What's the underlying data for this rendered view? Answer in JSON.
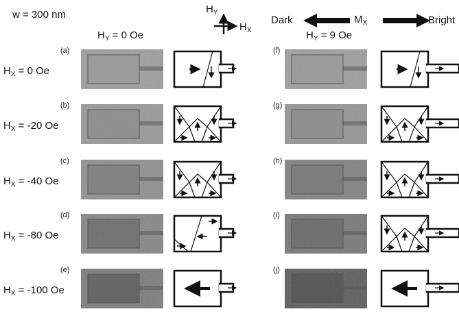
{
  "header": {
    "width_label": "w = 300 nm",
    "field_axes": {
      "y": {
        "main": "H",
        "sub": "Y"
      },
      "x": {
        "main": "H",
        "sub": "X"
      }
    },
    "contrast": {
      "dark": "Dark",
      "mx": {
        "main": "M",
        "sub": "X"
      },
      "bright": "Bright"
    }
  },
  "columns": [
    {
      "main": "H",
      "sub": "Y",
      "rest": " = 0 Oe"
    },
    {
      "main": "H",
      "sub": "Y",
      "rest": " = 9 Oe"
    }
  ],
  "rows": [
    {
      "field": {
        "main": "H",
        "sub": "X",
        "rest": " = 0 Oe"
      },
      "left_label": "(a)",
      "right_label": "(f)"
    },
    {
      "field": {
        "main": "H",
        "sub": "X",
        "rest": " = -20 Oe"
      },
      "left_label": "(b)",
      "right_label": "(g)"
    },
    {
      "field": {
        "main": "H",
        "sub": "X",
        "rest": " = -40 Oe"
      },
      "left_label": "(c)",
      "right_label": "(h)"
    },
    {
      "field": {
        "main": "H",
        "sub": "X",
        "rest": " = -80 Oe"
      },
      "left_label": "(d)",
      "right_label": "(i)"
    },
    {
      "field": {
        "main": "H",
        "sub": "X",
        "rest": " = -100 Oe"
      },
      "left_label": "(e)",
      "right_label": "(j)"
    }
  ]
}
